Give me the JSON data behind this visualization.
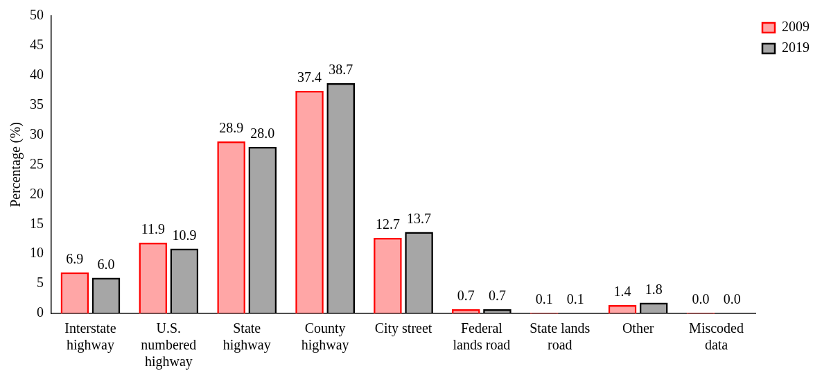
{
  "chart_data": {
    "type": "bar",
    "ylabel": "Percentage (%)",
    "categories": [
      "Interstate highway",
      "U.S. numbered highway",
      "State highway",
      "County highway",
      "City street",
      "Federal lands road",
      "State lands road",
      "Other",
      "Miscoded data"
    ],
    "series": [
      {
        "name": "2009",
        "color": "#ff0000",
        "values": [
          6.9,
          11.9,
          28.9,
          37.4,
          12.7,
          0.7,
          0.1,
          1.4,
          0.0
        ],
        "value_labels": [
          "6.9",
          "11.9",
          "28.9",
          "37.4",
          "12.7",
          "0.7",
          "0.1",
          "1.4",
          "0.0"
        ]
      },
      {
        "name": "2019",
        "color": "#000000",
        "values": [
          6.0,
          10.9,
          28.0,
          38.7,
          13.7,
          0.7,
          0.1,
          1.8,
          0.0
        ],
        "value_labels": [
          "6.0",
          "10.9",
          "28.0",
          "38.7",
          "13.7",
          "0.7",
          "0.1",
          "1.8",
          "0.0"
        ]
      }
    ],
    "ylim": [
      0,
      50
    ],
    "yticks": [
      0,
      5,
      10,
      15,
      20,
      25,
      30,
      35,
      40,
      45,
      50
    ],
    "grid": false,
    "legend": "top right"
  }
}
